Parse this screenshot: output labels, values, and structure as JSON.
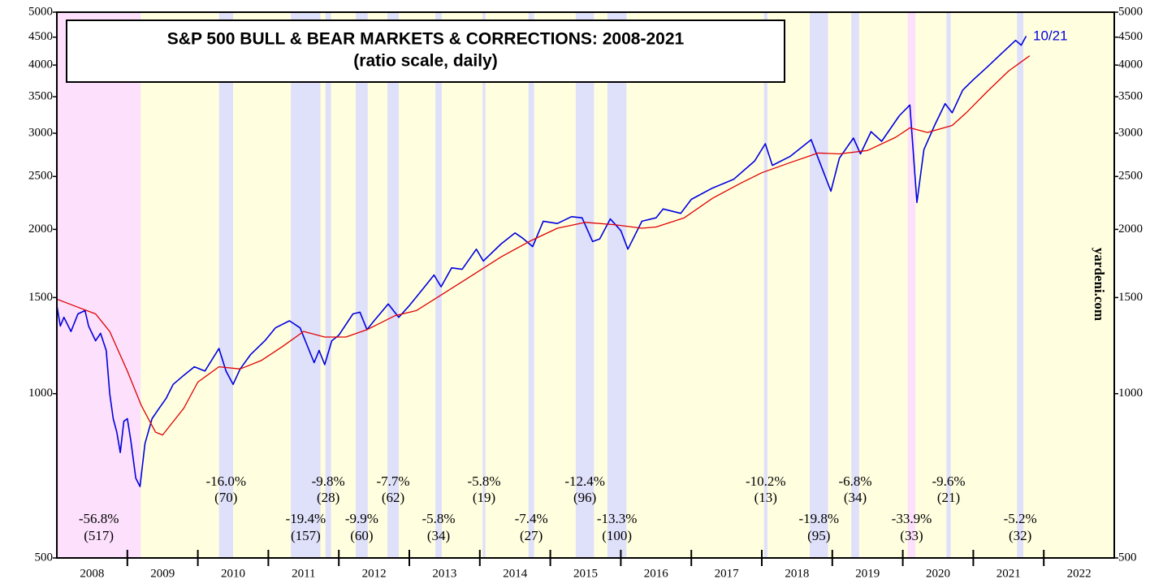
{
  "chart_data": {
    "type": "line",
    "title": "S&P 500 BULL & BEAR MARKETS & CORRECTIONS: 2008-2021",
    "subtitle": "(ratio scale, daily)",
    "source": "yardeni.com",
    "last_date_label": "10/21",
    "log_scale": true,
    "ylim": [
      500,
      5000
    ],
    "yticks": [
      500,
      1000,
      1500,
      2000,
      2500,
      3000,
      3500,
      4000,
      4500,
      5000
    ],
    "xlim": [
      2008,
      2023
    ],
    "xticks": [
      {
        "value": 2008.5,
        "label": "2008"
      },
      {
        "value": 2009.5,
        "label": "2009"
      },
      {
        "value": 2010.5,
        "label": "2010"
      },
      {
        "value": 2011.5,
        "label": "2011"
      },
      {
        "value": 2012.5,
        "label": "2012"
      },
      {
        "value": 2013.5,
        "label": "2013"
      },
      {
        "value": 2014.5,
        "label": "2014"
      },
      {
        "value": 2015.5,
        "label": "2015"
      },
      {
        "value": 2016.5,
        "label": "2016"
      },
      {
        "value": 2017.5,
        "label": "2017"
      },
      {
        "value": 2018.5,
        "label": "2018"
      },
      {
        "value": 2019.5,
        "label": "2019"
      },
      {
        "value": 2020.5,
        "label": "2020"
      },
      {
        "value": 2021.5,
        "label": "2021"
      },
      {
        "value": 2022.5,
        "label": "2022"
      }
    ],
    "band_colors": {
      "bear": "#fce0fc",
      "bull": "#ffffe0",
      "correction": "#dfe0fa"
    },
    "bull": [
      2009.19,
      2023
    ],
    "bands": [
      {
        "kind": "bear",
        "x": [
          2008,
          2009.19
        ],
        "change": "-56.8%",
        "days": "(517)"
      },
      {
        "kind": "correction",
        "x": [
          2010.3,
          2010.5
        ],
        "change": "-16.0%",
        "days": "(70)"
      },
      {
        "kind": "correction",
        "x": [
          2011.32,
          2011.74
        ],
        "change": "-19.4%",
        "days": "(157)"
      },
      {
        "kind": "correction",
        "x": [
          2011.81,
          2011.89
        ],
        "change": "-9.8%",
        "days": "(28)"
      },
      {
        "kind": "correction",
        "x": [
          2012.24,
          2012.41
        ],
        "change": "-9.9%",
        "days": "(60)"
      },
      {
        "kind": "correction",
        "x": [
          2012.69,
          2012.85
        ],
        "change": "-7.7%",
        "days": "(62)"
      },
      {
        "kind": "correction",
        "x": [
          2013.37,
          2013.46
        ],
        "change": "-5.8%",
        "days": "(34)"
      },
      {
        "kind": "correction",
        "x": [
          2014.04,
          2014.08
        ],
        "change": "-5.8%",
        "days": "(19)"
      },
      {
        "kind": "correction",
        "x": [
          2014.69,
          2014.77
        ],
        "change": "-7.4%",
        "days": "(27)"
      },
      {
        "kind": "correction",
        "x": [
          2015.36,
          2015.62
        ],
        "change": "-12.4%",
        "days": "(96)"
      },
      {
        "kind": "correction",
        "x": [
          2015.81,
          2016.08
        ],
        "change": "-13.3%",
        "days": "(100)"
      },
      {
        "kind": "correction",
        "x": [
          2018.03,
          2018.08
        ],
        "change": "-10.2%",
        "days": "(13)"
      },
      {
        "kind": "correction",
        "x": [
          2018.68,
          2018.94
        ],
        "change": "-19.8%",
        "days": "(95)"
      },
      {
        "kind": "correction",
        "x": [
          2019.27,
          2019.38
        ],
        "change": "-6.8%",
        "days": "(34)"
      },
      {
        "kind": "bear",
        "x": [
          2020.07,
          2020.18
        ],
        "change": "-33.9%",
        "days": "(33)"
      },
      {
        "kind": "correction",
        "x": [
          2020.62,
          2020.68
        ],
        "change": "-9.6%",
        "days": "(21)"
      },
      {
        "kind": "correction",
        "x": [
          2021.62,
          2021.71
        ],
        "change": "-5.2%",
        "days": "(32)"
      }
    ],
    "series": [
      {
        "color": "#0000dd",
        "x": [
          2008.0,
          2008.05,
          2008.1,
          2008.2,
          2008.3,
          2008.4,
          2008.45,
          2008.55,
          2008.62,
          2008.7,
          2008.75,
          2008.8,
          2008.85,
          2008.9,
          2008.95,
          2009.0,
          2009.05,
          2009.12,
          2009.18,
          2009.25,
          2009.35,
          2009.45,
          2009.55,
          2009.65,
          2009.8,
          2009.95,
          2010.1,
          2010.3,
          2010.4,
          2010.5,
          2010.6,
          2010.75,
          2010.95,
          2011.1,
          2011.3,
          2011.45,
          2011.58,
          2011.65,
          2011.72,
          2011.8,
          2011.9,
          2012.0,
          2012.2,
          2012.3,
          2012.4,
          2012.5,
          2012.7,
          2012.85,
          2013.0,
          2013.2,
          2013.35,
          2013.45,
          2013.6,
          2013.75,
          2013.95,
          2014.05,
          2014.3,
          2014.5,
          2014.6,
          2014.75,
          2014.9,
          2015.1,
          2015.3,
          2015.45,
          2015.6,
          2015.7,
          2015.85,
          2016.0,
          2016.1,
          2016.3,
          2016.5,
          2016.6,
          2016.85,
          2017.0,
          2017.3,
          2017.6,
          2017.9,
          2018.05,
          2018.15,
          2018.4,
          2018.7,
          2018.8,
          2018.98,
          2019.1,
          2019.3,
          2019.4,
          2019.55,
          2019.7,
          2019.95,
          2020.1,
          2020.2,
          2020.3,
          2020.45,
          2020.6,
          2020.7,
          2020.85,
          2021.0,
          2021.2,
          2021.4,
          2021.6,
          2021.68,
          2021.75
        ],
        "values": [
          1450,
          1330,
          1380,
          1300,
          1400,
          1420,
          1330,
          1250,
          1290,
          1200,
          1000,
          900,
          850,
          780,
          890,
          900,
          820,
          700,
          676,
          810,
          900,
          940,
          980,
          1040,
          1080,
          1120,
          1100,
          1210,
          1100,
          1040,
          1110,
          1180,
          1250,
          1320,
          1360,
          1320,
          1200,
          1140,
          1200,
          1130,
          1250,
          1280,
          1400,
          1410,
          1310,
          1360,
          1460,
          1380,
          1450,
          1560,
          1650,
          1570,
          1700,
          1690,
          1840,
          1750,
          1880,
          1970,
          1930,
          1860,
          2070,
          2050,
          2110,
          2100,
          1900,
          1920,
          2090,
          1990,
          1840,
          2070,
          2100,
          2180,
          2140,
          2270,
          2380,
          2470,
          2670,
          2870,
          2620,
          2720,
          2920,
          2700,
          2350,
          2700,
          2940,
          2750,
          3020,
          2900,
          3230,
          3380,
          2240,
          2800,
          3100,
          3400,
          3270,
          3600,
          3760,
          3970,
          4200,
          4440,
          4350,
          4520
        ]
      },
      {
        "color": "#e00000",
        "x": [
          2008.0,
          2008.3,
          2008.55,
          2008.75,
          2009.0,
          2009.2,
          2009.4,
          2009.5,
          2009.8,
          2010.0,
          2010.3,
          2010.6,
          2010.9,
          2011.2,
          2011.5,
          2011.8,
          2012.1,
          2012.4,
          2012.8,
          2013.1,
          2013.5,
          2013.9,
          2014.3,
          2014.7,
          2015.1,
          2015.5,
          2015.9,
          2016.3,
          2016.5,
          2016.9,
          2017.3,
          2017.7,
          2018.0,
          2018.4,
          2018.8,
          2019.1,
          2019.5,
          2019.9,
          2020.1,
          2020.35,
          2020.7,
          2020.9,
          2021.2,
          2021.5,
          2021.8
        ],
        "values": [
          1490,
          1440,
          1400,
          1300,
          1100,
          950,
          850,
          840,
          940,
          1050,
          1120,
          1110,
          1150,
          1220,
          1300,
          1270,
          1270,
          1310,
          1390,
          1420,
          1530,
          1650,
          1780,
          1900,
          2010,
          2060,
          2040,
          2010,
          2020,
          2100,
          2280,
          2430,
          2540,
          2650,
          2760,
          2750,
          2790,
          2950,
          3070,
          3010,
          3100,
          3270,
          3580,
          3900,
          4160
        ]
      }
    ]
  }
}
